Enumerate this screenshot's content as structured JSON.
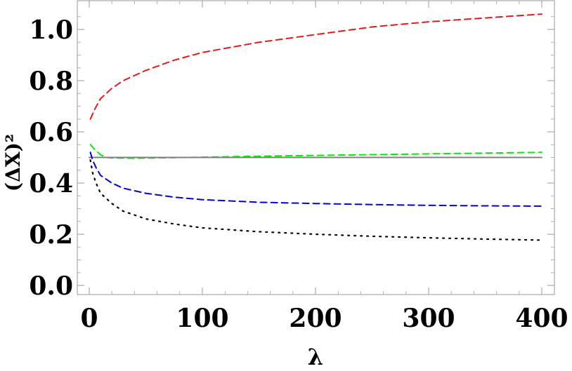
{
  "chart_data": {
    "type": "line",
    "xlabel": "λ",
    "ylabel": "(ΔX)²",
    "xlim": [
      -5,
      410
    ],
    "ylim": [
      -0.01,
      1.1
    ],
    "x_ticks": [
      0,
      100,
      200,
      300,
      400
    ],
    "x_tick_labels": [
      "0",
      "100",
      "200",
      "300",
      "400"
    ],
    "y_ticks": [
      0.0,
      0.2,
      0.4,
      0.6,
      0.8,
      1.0
    ],
    "y_tick_labels": [
      "0.0",
      "0.2",
      "0.4",
      "0.6",
      "0.8",
      "1.0"
    ],
    "grid": false,
    "series": [
      {
        "color": "#e31a1c",
        "style": "dashed",
        "x": [
          1,
          5,
          10,
          20,
          30,
          50,
          75,
          100,
          150,
          200,
          250,
          300,
          350,
          400
        ],
        "values": [
          0.65,
          0.69,
          0.73,
          0.77,
          0.8,
          0.84,
          0.88,
          0.91,
          0.95,
          0.98,
          1.01,
          1.03,
          1.045,
          1.06
        ]
      },
      {
        "color": "#00ee00",
        "style": "dashed",
        "x": [
          1,
          5,
          10,
          15,
          20,
          40,
          60,
          100,
          150,
          200,
          250,
          300,
          350,
          400
        ],
        "values": [
          0.55,
          0.53,
          0.51,
          0.5,
          0.498,
          0.497,
          0.498,
          0.501,
          0.505,
          0.508,
          0.511,
          0.514,
          0.517,
          0.52
        ]
      },
      {
        "color": "#808080",
        "style": "solid",
        "x": [
          0,
          400
        ],
        "values": [
          0.5,
          0.5
        ]
      },
      {
        "color": "#0000dd",
        "style": "dashed",
        "x": [
          1,
          3,
          6,
          10,
          20,
          30,
          50,
          75,
          100,
          150,
          200,
          250,
          300,
          350,
          400
        ],
        "values": [
          0.52,
          0.49,
          0.46,
          0.43,
          0.4,
          0.38,
          0.36,
          0.345,
          0.335,
          0.325,
          0.32,
          0.316,
          0.313,
          0.311,
          0.31
        ]
      },
      {
        "color": "#000000",
        "style": "dotted",
        "x": [
          1,
          3,
          6,
          10,
          20,
          30,
          50,
          75,
          100,
          150,
          200,
          250,
          300,
          350,
          400
        ],
        "values": [
          0.49,
          0.44,
          0.4,
          0.36,
          0.32,
          0.29,
          0.26,
          0.24,
          0.225,
          0.21,
          0.2,
          0.192,
          0.186,
          0.181,
          0.177
        ]
      }
    ]
  }
}
